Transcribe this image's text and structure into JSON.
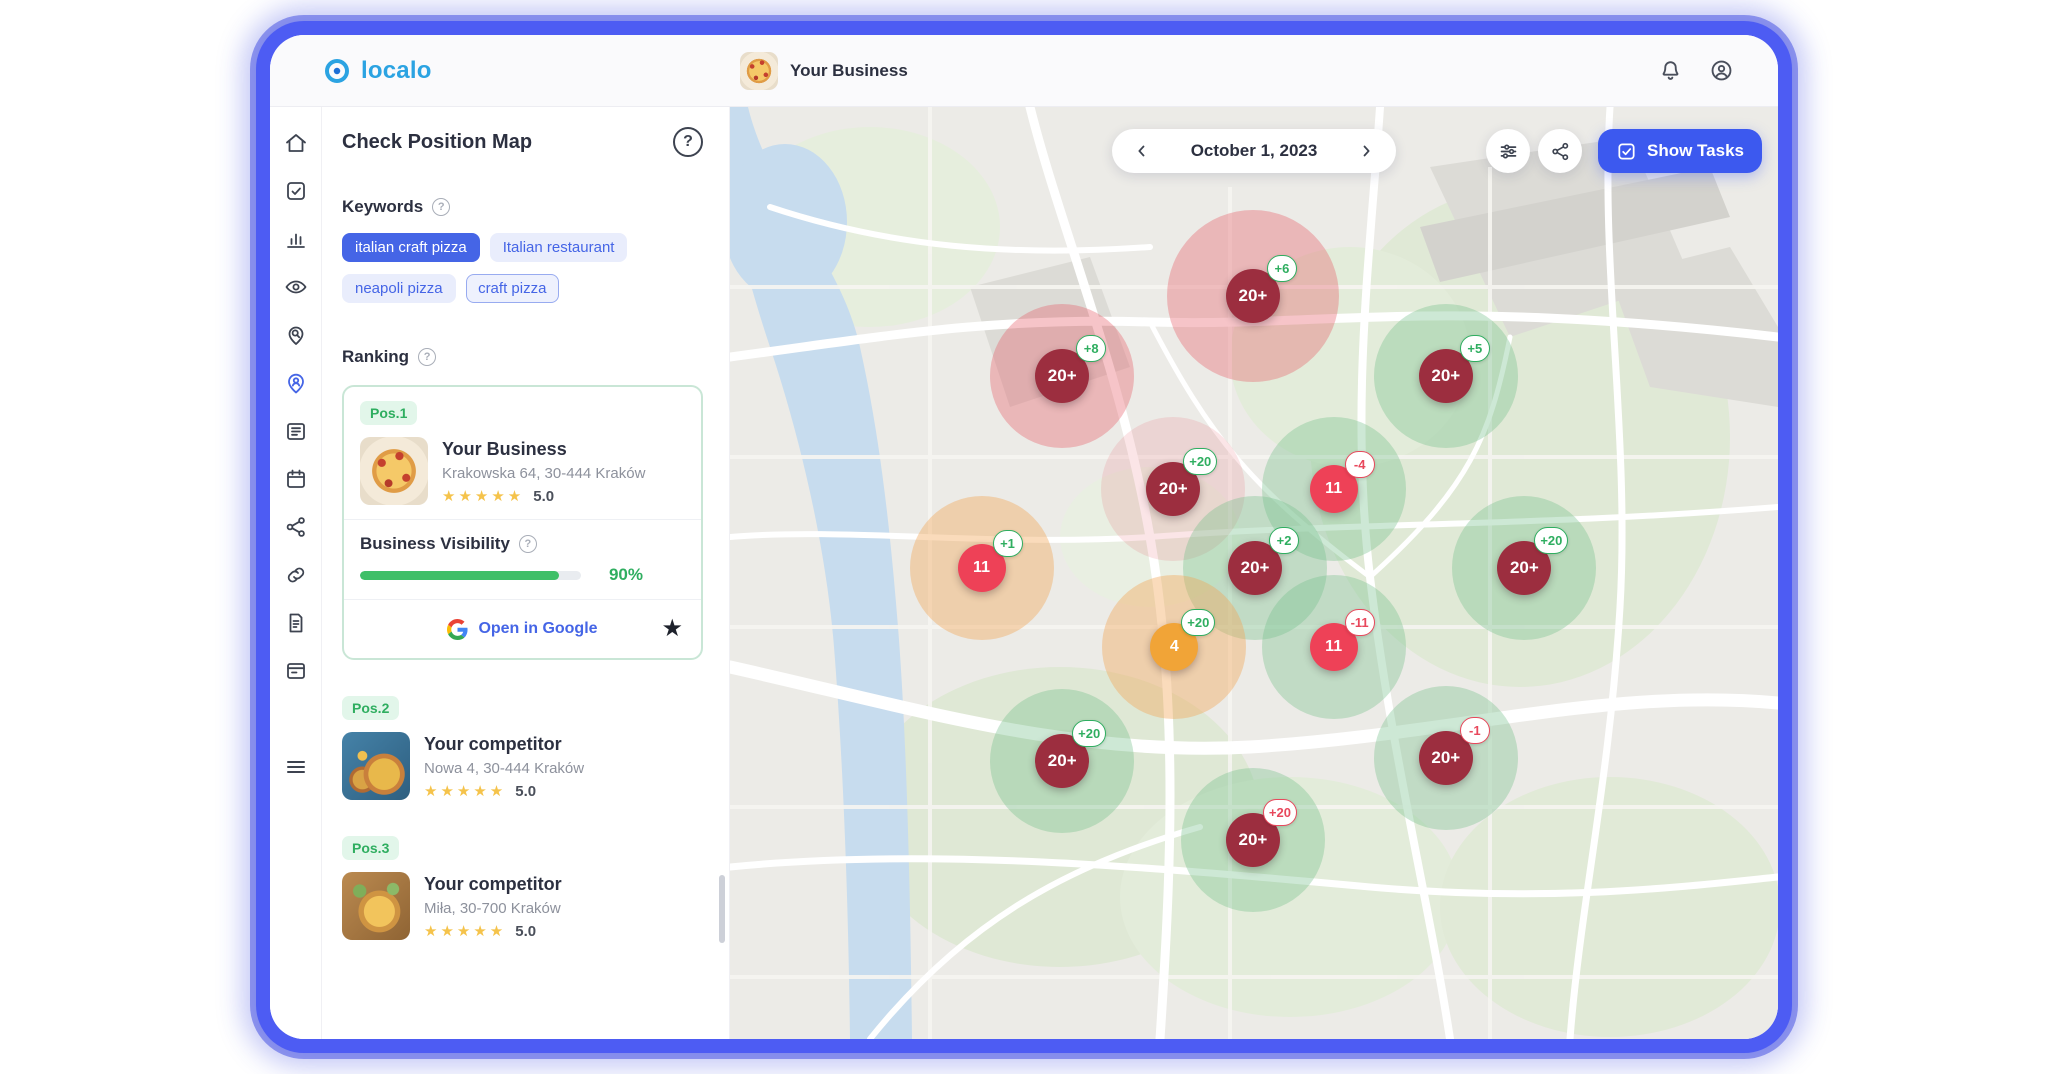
{
  "header": {
    "logo_text": "localo",
    "business_name": "Your Business"
  },
  "rail": {
    "items": [
      "home",
      "tasks",
      "statistics",
      "visibility",
      "keywords",
      "position-map",
      "posts",
      "calendar",
      "share",
      "links",
      "reports",
      "cards",
      "menu"
    ],
    "active": "position-map"
  },
  "top_icons": [
    "notifications",
    "account"
  ],
  "panel": {
    "title": "Check Position Map",
    "keywords_label": "Keywords",
    "keywords": [
      {
        "label": "italian craft pizza",
        "style": "solid"
      },
      {
        "label": "Italian restaurant",
        "style": "tint"
      },
      {
        "label": "neapoli pizza",
        "style": "tint"
      },
      {
        "label": "craft pizza",
        "style": "outline"
      }
    ],
    "ranking_label": "Ranking",
    "business_card": {
      "position": "Pos.1",
      "name": "Your Business",
      "address": "Krakowska 64, 30-444 Kraków",
      "stars": "★★★★★",
      "rating": "5.0",
      "visibility_label": "Business Visibility",
      "visibility_percent": "90%",
      "visibility_value": 90,
      "google_label": "Open in Google"
    },
    "competitors": [
      {
        "position": "Pos.2",
        "name": "Your competitor",
        "address": "Nowa 4, 30-444 Kraków",
        "stars": "★★★★★",
        "rating": "5.0"
      },
      {
        "position": "Pos.3",
        "name": "Your competitor",
        "address": "Miła, 30-700 Kraków",
        "stars": "★★★★★",
        "rating": "5.0"
      }
    ]
  },
  "map": {
    "date_label": "October 1, 2023",
    "show_tasks_label": "Show Tasks",
    "markers": [
      {
        "value": "20+",
        "change": "+6",
        "change_color": "green",
        "color": "dark",
        "halo": "red",
        "x": 49.9,
        "y": 20.3,
        "halo_d": 172
      },
      {
        "value": "20+",
        "change": "+8",
        "change_color": "green",
        "color": "dark",
        "halo": "red",
        "x": 31.7,
        "y": 28.9
      },
      {
        "value": "20+",
        "change": "+5",
        "change_color": "green",
        "color": "dark",
        "halo": "green",
        "x": 68.3,
        "y": 28.9
      },
      {
        "value": "20+",
        "change": "+20",
        "change_color": "green",
        "color": "dark",
        "halo": "red-faded",
        "x": 42.3,
        "y": 41.0
      },
      {
        "value": "11",
        "change": "-4",
        "change_color": "red",
        "color": "red",
        "halo": "green",
        "x": 57.6,
        "y": 41.0
      },
      {
        "value": "11",
        "change": "+1",
        "change_color": "green",
        "color": "red",
        "halo": "orange",
        "x": 24.0,
        "y": 49.5
      },
      {
        "value": "20+",
        "change": "+2",
        "change_color": "green",
        "color": "dark",
        "halo": "green",
        "x": 50.1,
        "y": 49.5
      },
      {
        "value": "20+",
        "change": "+20",
        "change_color": "green",
        "color": "dark",
        "halo": "green",
        "x": 75.8,
        "y": 49.5
      },
      {
        "value": "4",
        "change": "+20",
        "change_color": "green",
        "color": "orange",
        "halo": "orange",
        "x": 42.4,
        "y": 57.9
      },
      {
        "value": "11",
        "change": "-11",
        "change_color": "red",
        "color": "red",
        "halo": "green",
        "x": 57.6,
        "y": 57.9
      },
      {
        "value": "20+",
        "change": "+20",
        "change_color": "green",
        "color": "dark",
        "halo": "green",
        "x": 31.7,
        "y": 70.2
      },
      {
        "value": "20+",
        "change": "-1",
        "change_color": "red",
        "color": "dark",
        "halo": "green",
        "x": 68.3,
        "y": 69.9
      },
      {
        "value": "20+",
        "change": "+20",
        "change_color": "red",
        "color": "dark",
        "halo": "green",
        "x": 49.9,
        "y": 78.7
      }
    ]
  },
  "colors": {
    "accent_blue": "#4565E6",
    "frame_blue": "#4D5CF3",
    "logo_blue": "#2BA3E2",
    "green": "#2FAE60",
    "red": "#E8485C",
    "marker_dark": "#9C2E3F",
    "marker_red": "#EE4157",
    "marker_orange": "#F1A437",
    "star_yellow": "#F5C34B"
  }
}
